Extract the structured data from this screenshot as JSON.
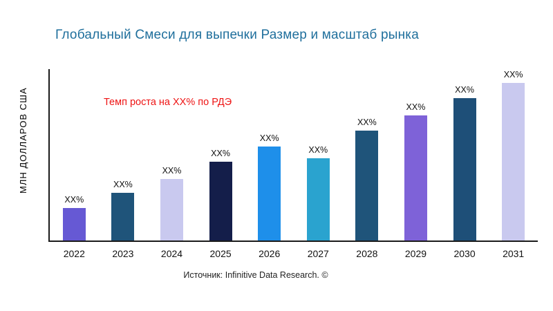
{
  "title": "Глобальный Смеси для выпечки Размер и масштаб рынка",
  "annotation": "Темп роста на XX% по РДЭ",
  "source": "Источник: Infinitive Data Research. ©",
  "colors": {
    "title": "#1f6f9c",
    "annotation": "#ee1414",
    "axis": "#1a1a1a",
    "text": "#111111"
  },
  "chart_data": {
    "type": "bar",
    "title": "Глобальный Смеси для выпечки Размер и масштаб рынка",
    "xlabel": "",
    "ylabel": "МЛН ДОЛЛАРОВ США",
    "categories": [
      "2022",
      "2023",
      "2024",
      "2025",
      "2026",
      "2027",
      "2028",
      "2029",
      "2030",
      "2031"
    ],
    "values": [
      19,
      28,
      36,
      46,
      55,
      48,
      64,
      73,
      83,
      92
    ],
    "bar_labels": [
      "XX%",
      "XX%",
      "XX%",
      "XX%",
      "XX%",
      "XX%",
      "XX%",
      "XX%",
      "XX%",
      "XX%"
    ],
    "bar_colors": [
      "#6659d4",
      "#1f547a",
      "#c9c9ef",
      "#141e4a",
      "#1e8fea",
      "#2aa3cf",
      "#1f547a",
      "#7e62d8",
      "#1e4f78",
      "#c9c9ef"
    ],
    "ylim": [
      0,
      100
    ],
    "grid": false,
    "legend": false
  }
}
